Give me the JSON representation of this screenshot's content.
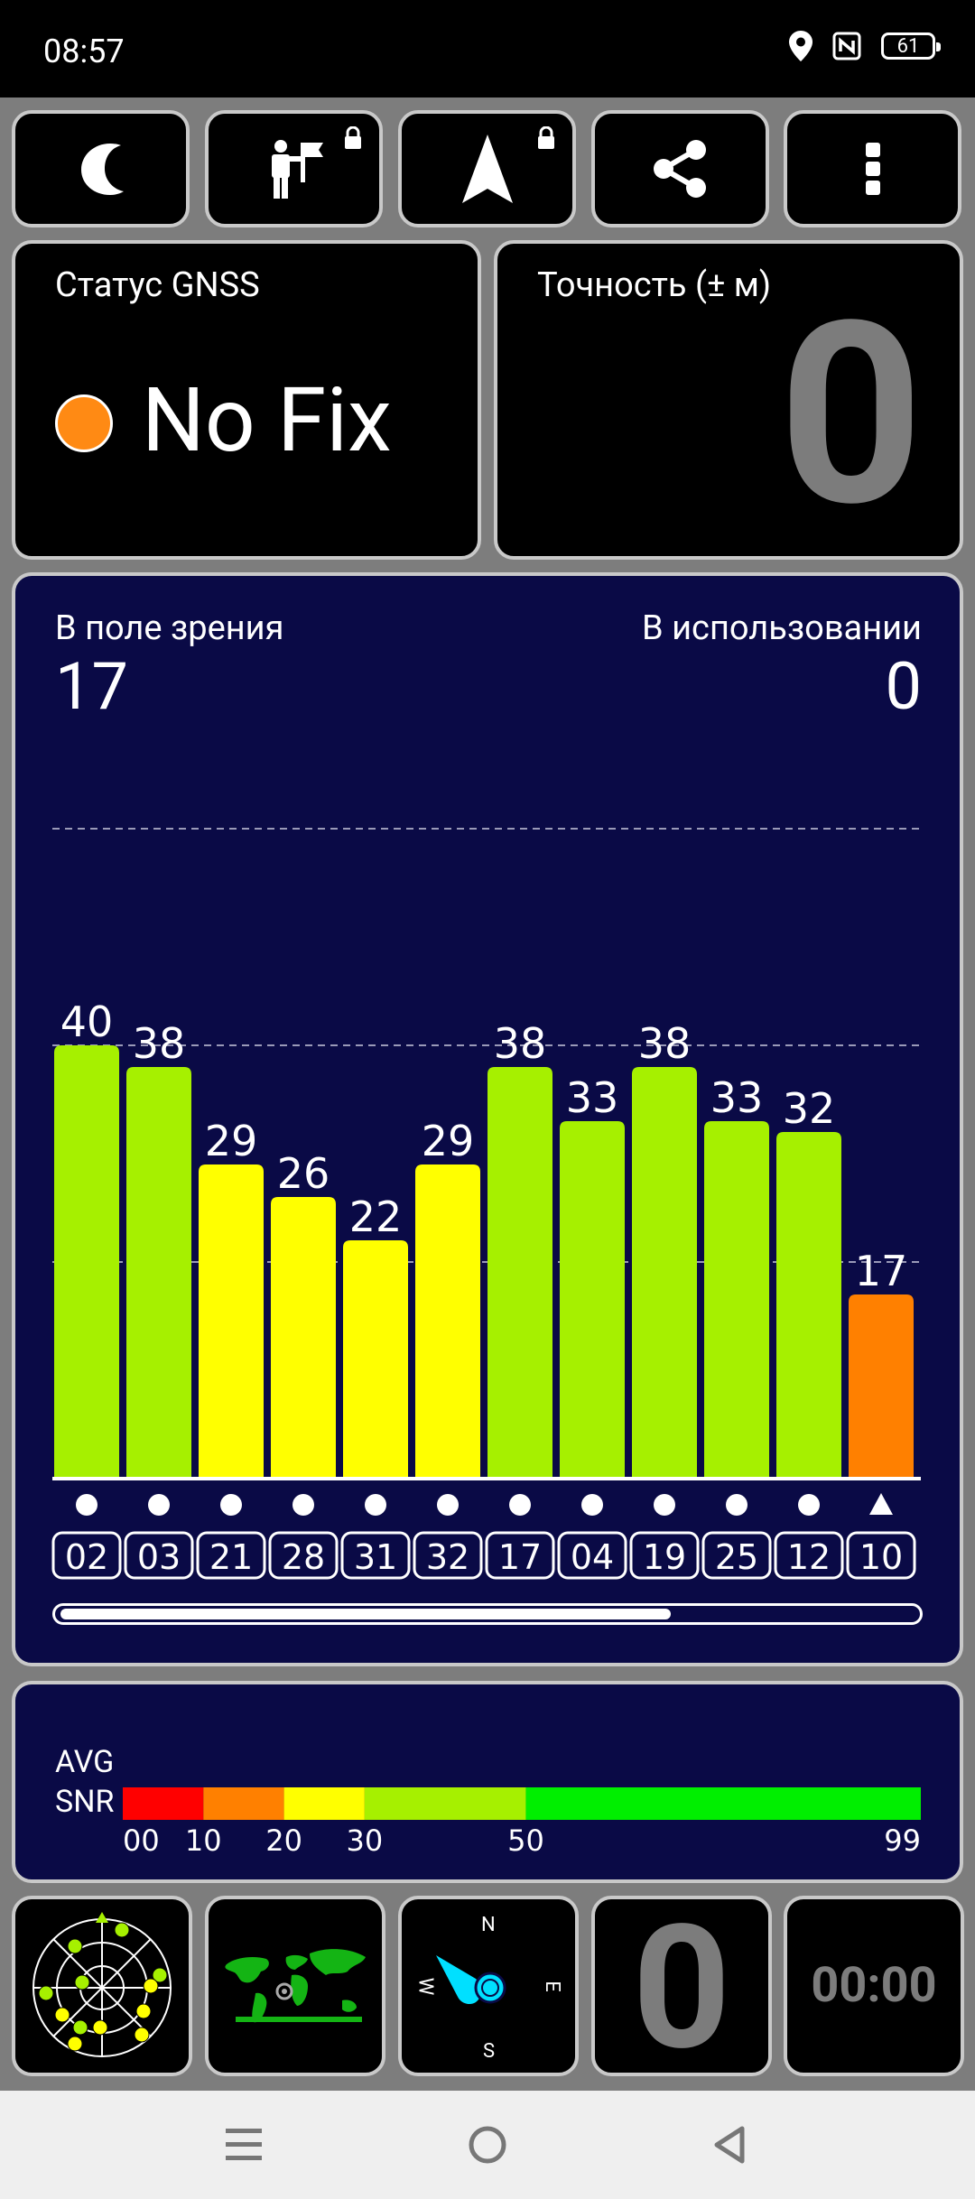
{
  "status_bar": {
    "time": "08:57",
    "battery": "61",
    "icons": [
      "location-icon",
      "nfc-icon",
      "battery-icon"
    ]
  },
  "toolbar": {
    "buttons": [
      "night-mode-icon",
      "person-flag-icon",
      "navigation-arrow-icon",
      "share-icon",
      "more-vert-icon"
    ],
    "locked": [
      "person-flag-icon",
      "navigation-arrow-icon"
    ]
  },
  "gnss_status": {
    "label": "Статус GNSS",
    "value": "No Fix",
    "dot_color": "#ff8a14"
  },
  "accuracy": {
    "label": "Точность (± м)",
    "value": "0"
  },
  "satellites": {
    "in_view_label": "В поле зрения",
    "in_view": "17",
    "in_use_label": "В использовании",
    "in_use": "0"
  },
  "chart_data": {
    "type": "bar",
    "categories": [
      "02",
      "03",
      "21",
      "28",
      "31",
      "32",
      "17",
      "04",
      "19",
      "25",
      "12",
      "10"
    ],
    "values": [
      40,
      38,
      29,
      26,
      22,
      29,
      38,
      33,
      38,
      33,
      32,
      17
    ],
    "markers": [
      "dot",
      "dot",
      "dot",
      "dot",
      "dot",
      "dot",
      "dot",
      "dot",
      "dot",
      "dot",
      "dot",
      "triangle"
    ],
    "colors": [
      "#a6f000",
      "#a6f000",
      "#ffff00",
      "#ffff00",
      "#ffff00",
      "#ffff00",
      "#a6f000",
      "#a6f000",
      "#a6f000",
      "#a6f000",
      "#a6f000",
      "#ff8000"
    ],
    "ylim": [
      0,
      60
    ],
    "gridlines": [
      20,
      40,
      60
    ],
    "partially_visible_next": true
  },
  "scroll": {
    "fraction": 0.71
  },
  "snr_legend": {
    "label_line1": "AVG",
    "label_line2": "SNR",
    "segments": [
      {
        "from": 0,
        "to": 10,
        "color": "#ff0000"
      },
      {
        "from": 10,
        "to": 20,
        "color": "#ff8000"
      },
      {
        "from": 20,
        "to": 30,
        "color": "#ffff00"
      },
      {
        "from": 30,
        "to": 50,
        "color": "#a6f000"
      },
      {
        "from": 50,
        "to": 99,
        "color": "#00ef00"
      }
    ],
    "ticks": [
      "00",
      "10",
      "20",
      "30",
      "50",
      "99"
    ]
  },
  "bottom_tiles": {
    "compass": {
      "n": "N",
      "e": "E",
      "s": "S",
      "w": "W"
    },
    "speed": "0",
    "timer": "00:00"
  },
  "nav_bar": [
    "menu-icon",
    "home-icon",
    "back-icon"
  ]
}
